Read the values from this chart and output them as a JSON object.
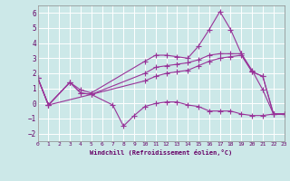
{
  "xlabel": "Windchill (Refroidissement éolien,°C)",
  "bg_color": "#cce8e8",
  "grid_color": "#ffffff",
  "line_color": "#993399",
  "xlim": [
    0,
    23
  ],
  "ylim": [
    -2.5,
    6.5
  ],
  "yticks": [
    -2,
    -1,
    0,
    1,
    2,
    3,
    4,
    5,
    6
  ],
  "xticks": [
    0,
    1,
    2,
    3,
    4,
    5,
    6,
    7,
    8,
    9,
    10,
    11,
    12,
    13,
    14,
    15,
    16,
    17,
    18,
    19,
    20,
    21,
    22,
    23
  ],
  "line1_x": [
    0,
    1,
    3,
    4,
    5,
    10,
    11,
    12,
    13,
    14,
    15,
    16,
    17,
    18,
    19,
    20,
    21,
    22,
    23
  ],
  "line1_y": [
    1.7,
    -0.1,
    1.4,
    0.9,
    0.7,
    2.8,
    3.2,
    3.2,
    3.1,
    3.0,
    3.8,
    4.9,
    6.1,
    4.9,
    3.3,
    2.2,
    0.9,
    -0.7,
    -0.7
  ],
  "line2_x": [
    0,
    1,
    3,
    4,
    5,
    10,
    11,
    12,
    13,
    14,
    15,
    16,
    17,
    18,
    19,
    20,
    21,
    22,
    23
  ],
  "line2_y": [
    1.7,
    -0.1,
    1.4,
    0.7,
    0.6,
    2.0,
    2.4,
    2.5,
    2.6,
    2.7,
    2.9,
    3.2,
    3.3,
    3.3,
    3.3,
    2.1,
    1.8,
    -0.7,
    -0.7
  ],
  "line3_x": [
    0,
    1,
    3,
    4,
    5,
    10,
    11,
    12,
    13,
    14,
    15,
    16,
    17,
    18,
    19,
    20,
    21,
    22,
    23
  ],
  "line3_y": [
    1.7,
    -0.1,
    1.4,
    0.7,
    0.6,
    1.5,
    1.8,
    2.0,
    2.1,
    2.2,
    2.5,
    2.8,
    3.0,
    3.1,
    3.2,
    2.1,
    1.8,
    -0.7,
    -0.7
  ],
  "line4_x": [
    0,
    1,
    5,
    7,
    8,
    9,
    10,
    11,
    12,
    13,
    14,
    15,
    16,
    17,
    18,
    19,
    20,
    21,
    22,
    23
  ],
  "line4_y": [
    1.7,
    -0.1,
    0.6,
    -0.1,
    -1.5,
    -0.8,
    -0.2,
    0.0,
    0.1,
    0.1,
    -0.1,
    -0.2,
    -0.5,
    -0.5,
    -0.5,
    -0.7,
    -0.8,
    -0.8,
    -0.7,
    -0.7
  ]
}
